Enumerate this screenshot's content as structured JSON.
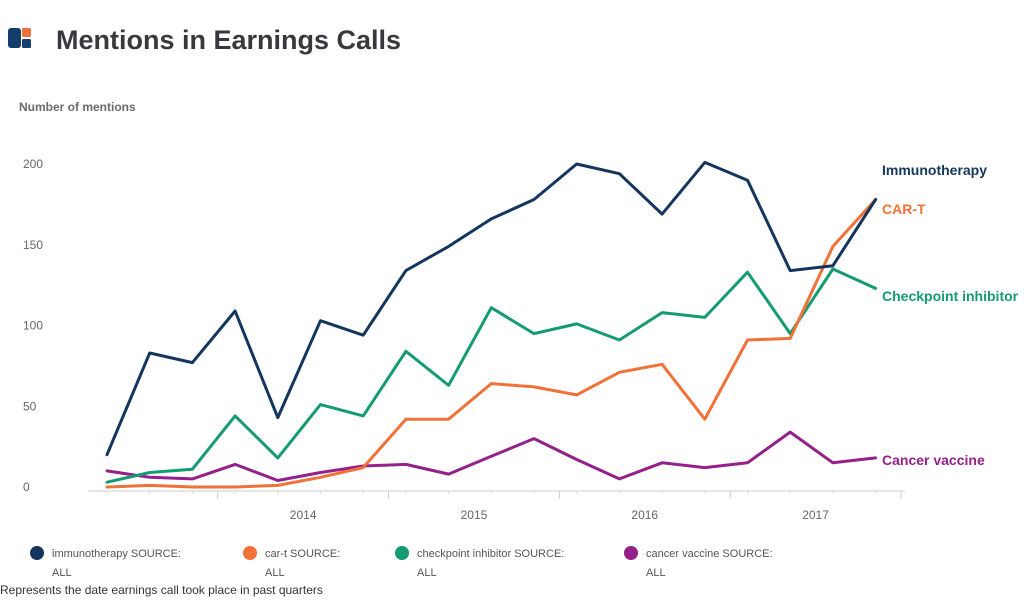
{
  "header": {
    "logo": "brand-logo-icon",
    "title": "Mentions in Earnings Calls"
  },
  "footnote": "Represents the date earnings call took place in past quarters",
  "colors": {
    "immunotherapy": "#14365e",
    "cart": "#f07238",
    "checkpoint": "#159b72",
    "vaccine": "#94218a",
    "logo_blue": "#153d6b",
    "logo_orange": "#f0703a"
  },
  "chart_data": {
    "type": "line",
    "title": "Mentions in Earnings Calls",
    "ylabel": "Number of mentions",
    "ylim": [
      0,
      200
    ],
    "yticks": [
      0,
      50,
      100,
      150,
      200
    ],
    "x_tick_labels": [
      "2014",
      "2015",
      "2016",
      "2017"
    ],
    "x_quarters": 19,
    "grid": false,
    "series": [
      {
        "key": "immunotherapy",
        "name": "Immunotherapy",
        "legend_line1": "immunotherapy SOURCE:",
        "legend_line2": "ALL",
        "values": [
          20,
          83,
          77,
          109,
          43,
          103,
          94,
          134,
          149,
          166,
          178,
          200,
          194,
          169,
          201,
          190,
          134,
          137,
          178
        ]
      },
      {
        "key": "cart",
        "name": "CAR-T",
        "legend_line1": "car-t SOURCE:",
        "legend_line2": "ALL",
        "values": [
          0,
          1,
          0,
          0,
          1,
          6,
          12,
          42,
          42,
          64,
          62,
          57,
          71,
          76,
          42,
          91,
          92,
          149,
          178
        ]
      },
      {
        "key": "checkpoint",
        "name": "Checkpoint inhibitor",
        "legend_line1": "checkpoint inhibitor SOURCE:",
        "legend_line2": "ALL",
        "values": [
          3,
          9,
          11,
          44,
          18,
          51,
          44,
          84,
          63,
          111,
          95,
          101,
          91,
          108,
          105,
          133,
          95,
          135,
          123
        ]
      },
      {
        "key": "vaccine",
        "name": "Cancer vaccine",
        "legend_line1": "cancer vaccine SOURCE:",
        "legend_line2": "ALL",
        "values": [
          10,
          6,
          5,
          14,
          4,
          9,
          13,
          14,
          8,
          19,
          30,
          17,
          5,
          15,
          12,
          15,
          34,
          15,
          18
        ]
      }
    ],
    "legend_position": "bottom"
  }
}
